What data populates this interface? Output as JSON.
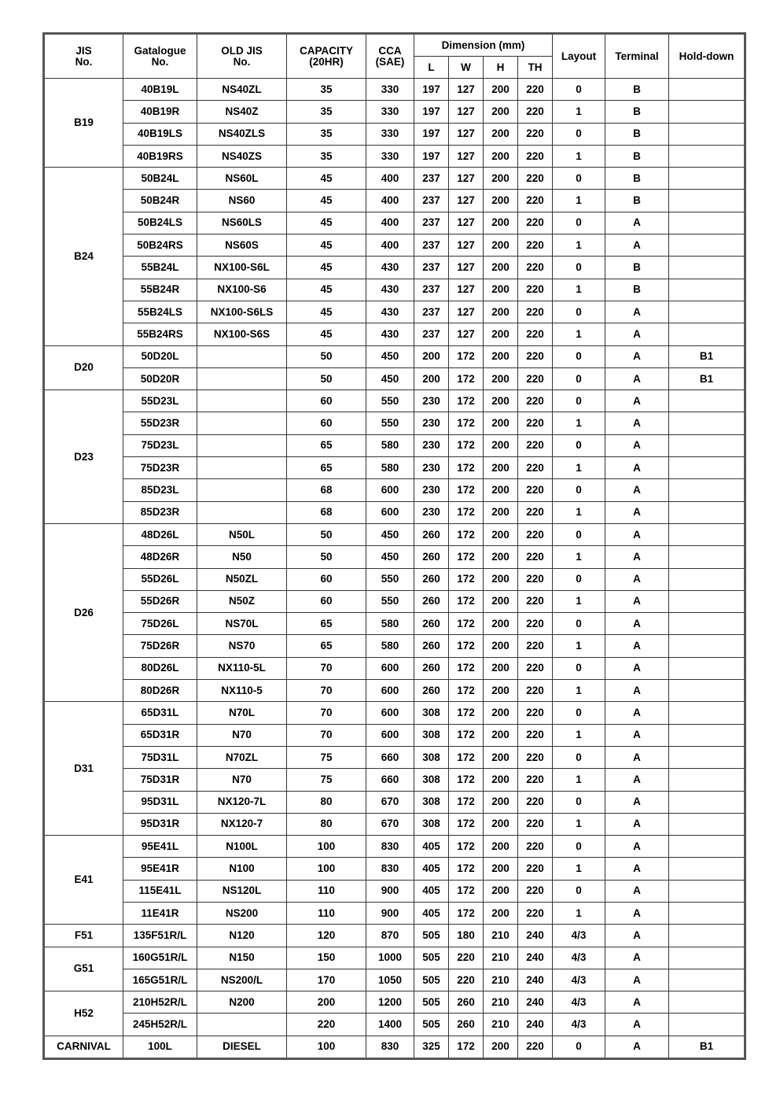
{
  "headers": {
    "jis": "JIS\nNo.",
    "catalogue": "Gatalogue\nNo.",
    "old_jis": "OLD JIS\nNo.",
    "capacity": "CAPACITY\n(20HR)",
    "cca": "CCA\n(SAE)",
    "dimension": "Dimension (mm)",
    "dim_l": "L",
    "dim_w": "W",
    "dim_h": "H",
    "dim_th": "TH",
    "layout": "Layout",
    "terminal": "Terminal",
    "holddown": "Hold-down"
  },
  "groups": [
    {
      "jis": "B19",
      "rows": [
        [
          "40B19L",
          "NS40ZL",
          "35",
          "330",
          "197",
          "127",
          "200",
          "220",
          "0",
          "B",
          ""
        ],
        [
          "40B19R",
          "NS40Z",
          "35",
          "330",
          "197",
          "127",
          "200",
          "220",
          "1",
          "B",
          ""
        ],
        [
          "40B19LS",
          "NS40ZLS",
          "35",
          "330",
          "197",
          "127",
          "200",
          "220",
          "0",
          "B",
          ""
        ],
        [
          "40B19RS",
          "NS40ZS",
          "35",
          "330",
          "197",
          "127",
          "200",
          "220",
          "1",
          "B",
          ""
        ]
      ]
    },
    {
      "jis": "B24",
      "rows": [
        [
          "50B24L",
          "NS60L",
          "45",
          "400",
          "237",
          "127",
          "200",
          "220",
          "0",
          "B",
          ""
        ],
        [
          "50B24R",
          "NS60",
          "45",
          "400",
          "237",
          "127",
          "200",
          "220",
          "1",
          "B",
          ""
        ],
        [
          "50B24LS",
          "NS60LS",
          "45",
          "400",
          "237",
          "127",
          "200",
          "220",
          "0",
          "A",
          ""
        ],
        [
          "50B24RS",
          "NS60S",
          "45",
          "400",
          "237",
          "127",
          "200",
          "220",
          "1",
          "A",
          ""
        ],
        [
          "55B24L",
          "NX100-S6L",
          "45",
          "430",
          "237",
          "127",
          "200",
          "220",
          "0",
          "B",
          ""
        ],
        [
          "55B24R",
          "NX100-S6",
          "45",
          "430",
          "237",
          "127",
          "200",
          "220",
          "1",
          "B",
          ""
        ],
        [
          "55B24LS",
          "NX100-S6LS",
          "45",
          "430",
          "237",
          "127",
          "200",
          "220",
          "0",
          "A",
          ""
        ],
        [
          "55B24RS",
          "NX100-S6S",
          "45",
          "430",
          "237",
          "127",
          "200",
          "220",
          "1",
          "A",
          ""
        ]
      ]
    },
    {
      "jis": "D20",
      "rows": [
        [
          "50D20L",
          "",
          "50",
          "450",
          "200",
          "172",
          "200",
          "220",
          "0",
          "A",
          "B1"
        ],
        [
          "50D20R",
          "",
          "50",
          "450",
          "200",
          "172",
          "200",
          "220",
          "0",
          "A",
          "B1"
        ]
      ]
    },
    {
      "jis": "D23",
      "rows": [
        [
          "55D23L",
          "",
          "60",
          "550",
          "230",
          "172",
          "200",
          "220",
          "0",
          "A",
          ""
        ],
        [
          "55D23R",
          "",
          "60",
          "550",
          "230",
          "172",
          "200",
          "220",
          "1",
          "A",
          ""
        ],
        [
          "75D23L",
          "",
          "65",
          "580",
          "230",
          "172",
          "200",
          "220",
          "0",
          "A",
          ""
        ],
        [
          "75D23R",
          "",
          "65",
          "580",
          "230",
          "172",
          "200",
          "220",
          "1",
          "A",
          ""
        ],
        [
          "85D23L",
          "",
          "68",
          "600",
          "230",
          "172",
          "200",
          "220",
          "0",
          "A",
          ""
        ],
        [
          "85D23R",
          "",
          "68",
          "600",
          "230",
          "172",
          "200",
          "220",
          "1",
          "A",
          ""
        ]
      ]
    },
    {
      "jis": "D26",
      "rows": [
        [
          "48D26L",
          "N50L",
          "50",
          "450",
          "260",
          "172",
          "200",
          "220",
          "0",
          "A",
          ""
        ],
        [
          "48D26R",
          "N50",
          "50",
          "450",
          "260",
          "172",
          "200",
          "220",
          "1",
          "A",
          ""
        ],
        [
          "55D26L",
          "N50ZL",
          "60",
          "550",
          "260",
          "172",
          "200",
          "220",
          "0",
          "A",
          ""
        ],
        [
          "55D26R",
          "N50Z",
          "60",
          "550",
          "260",
          "172",
          "200",
          "220",
          "1",
          "A",
          ""
        ],
        [
          "75D26L",
          "NS70L",
          "65",
          "580",
          "260",
          "172",
          "200",
          "220",
          "0",
          "A",
          ""
        ],
        [
          "75D26R",
          "NS70",
          "65",
          "580",
          "260",
          "172",
          "200",
          "220",
          "1",
          "A",
          ""
        ],
        [
          "80D26L",
          "NX110-5L",
          "70",
          "600",
          "260",
          "172",
          "200",
          "220",
          "0",
          "A",
          ""
        ],
        [
          "80D26R",
          "NX110-5",
          "70",
          "600",
          "260",
          "172",
          "200",
          "220",
          "1",
          "A",
          ""
        ]
      ]
    },
    {
      "jis": "D31",
      "rows": [
        [
          "65D31L",
          "N70L",
          "70",
          "600",
          "308",
          "172",
          "200",
          "220",
          "0",
          "A",
          ""
        ],
        [
          "65D31R",
          "N70",
          "70",
          "600",
          "308",
          "172",
          "200",
          "220",
          "1",
          "A",
          ""
        ],
        [
          "75D31L",
          "N70ZL",
          "75",
          "660",
          "308",
          "172",
          "200",
          "220",
          "0",
          "A",
          ""
        ],
        [
          "75D31R",
          "N70",
          "75",
          "660",
          "308",
          "172",
          "200",
          "220",
          "1",
          "A",
          ""
        ],
        [
          "95D31L",
          "NX120-7L",
          "80",
          "670",
          "308",
          "172",
          "200",
          "220",
          "0",
          "A",
          ""
        ],
        [
          "95D31R",
          "NX120-7",
          "80",
          "670",
          "308",
          "172",
          "200",
          "220",
          "1",
          "A",
          ""
        ]
      ]
    },
    {
      "jis": "E41",
      "rows": [
        [
          "95E41L",
          "N100L",
          "100",
          "830",
          "405",
          "172",
          "200",
          "220",
          "0",
          "A",
          ""
        ],
        [
          "95E41R",
          "N100",
          "100",
          "830",
          "405",
          "172",
          "200",
          "220",
          "1",
          "A",
          ""
        ],
        [
          "115E41L",
          "NS120L",
          "110",
          "900",
          "405",
          "172",
          "200",
          "220",
          "0",
          "A",
          ""
        ],
        [
          "11E41R",
          "NS200",
          "110",
          "900",
          "405",
          "172",
          "200",
          "220",
          "1",
          "A",
          ""
        ]
      ]
    },
    {
      "jis": "F51",
      "rows": [
        [
          "135F51R/L",
          "N120",
          "120",
          "870",
          "505",
          "180",
          "210",
          "240",
          "4/3",
          "A",
          ""
        ]
      ]
    },
    {
      "jis": "G51",
      "rows": [
        [
          "160G51R/L",
          "N150",
          "150",
          "1000",
          "505",
          "220",
          "210",
          "240",
          "4/3",
          "A",
          ""
        ],
        [
          "165G51R/L",
          "NS200/L",
          "170",
          "1050",
          "505",
          "220",
          "210",
          "240",
          "4/3",
          "A",
          ""
        ]
      ]
    },
    {
      "jis": "H52",
      "rows": [
        [
          "210H52R/L",
          "N200",
          "200",
          "1200",
          "505",
          "260",
          "210",
          "240",
          "4/3",
          "A",
          ""
        ],
        [
          "245H52R/L",
          "",
          "220",
          "1400",
          "505",
          "260",
          "210",
          "240",
          "4/3",
          "A",
          ""
        ]
      ]
    },
    {
      "jis": "CARNIVAL",
      "rows": [
        [
          "100L",
          "DIESEL",
          "100",
          "830",
          "325",
          "172",
          "200",
          "220",
          "0",
          "A",
          "B1"
        ]
      ]
    }
  ]
}
